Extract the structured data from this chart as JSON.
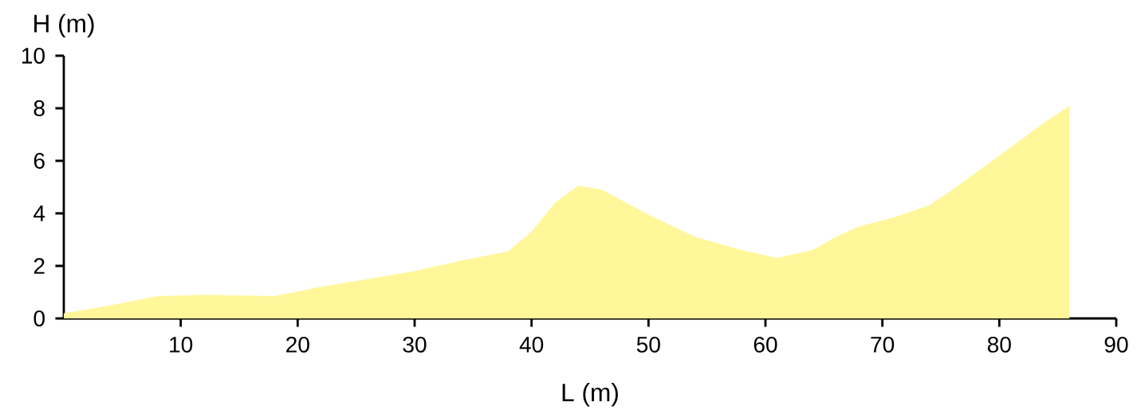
{
  "chart_data": {
    "type": "area",
    "xlabel": "L (m)",
    "ylabel": "H (m)",
    "color": "#fff799",
    "x": [
      0,
      4,
      8,
      12,
      18,
      22,
      26,
      30,
      34,
      38,
      40,
      42,
      44,
      46,
      50,
      54,
      58,
      61,
      64,
      66,
      68,
      71,
      74,
      76,
      80,
      84,
      86
    ],
    "values": [
      0.2,
      0.5,
      0.85,
      0.9,
      0.85,
      1.2,
      1.5,
      1.8,
      2.2,
      2.55,
      3.3,
      4.4,
      5.05,
      4.9,
      3.95,
      3.1,
      2.6,
      2.3,
      2.6,
      3.1,
      3.5,
      3.85,
      4.3,
      4.9,
      6.2,
      7.5,
      8.1
    ],
    "xlim": [
      0,
      90
    ],
    "ylim": [
      0,
      10
    ],
    "xticks": [
      10,
      20,
      30,
      40,
      50,
      60,
      70,
      80,
      90
    ],
    "yticks": [
      0,
      2,
      4,
      6,
      8,
      10
    ],
    "grid": false
  }
}
